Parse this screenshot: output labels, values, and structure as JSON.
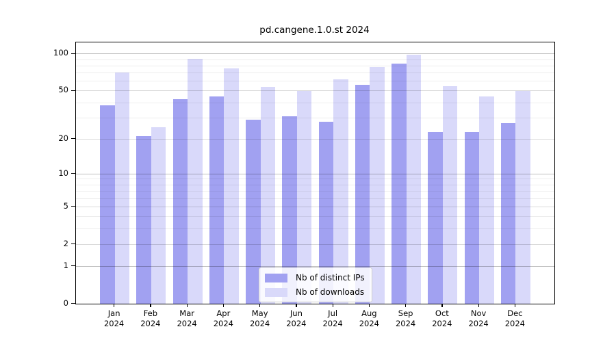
{
  "chart_data": {
    "type": "bar",
    "title": "pd.cangene.1.0.st 2024",
    "scale": "log1p",
    "grid": true,
    "categories": [
      {
        "month": "Jan",
        "year": "2024"
      },
      {
        "month": "Feb",
        "year": "2024"
      },
      {
        "month": "Mar",
        "year": "2024"
      },
      {
        "month": "Apr",
        "year": "2024"
      },
      {
        "month": "May",
        "year": "2024"
      },
      {
        "month": "Jun",
        "year": "2024"
      },
      {
        "month": "Jul",
        "year": "2024"
      },
      {
        "month": "Aug",
        "year": "2024"
      },
      {
        "month": "Sep",
        "year": "2024"
      },
      {
        "month": "Oct",
        "year": "2024"
      },
      {
        "month": "Nov",
        "year": "2024"
      },
      {
        "month": "Dec",
        "year": "2024"
      }
    ],
    "series": [
      {
        "name": "Nb of distinct IPs",
        "color": "#a1a1f1",
        "values": [
          38,
          21,
          43,
          45,
          29,
          31,
          28,
          56,
          83,
          23,
          23,
          27
        ]
      },
      {
        "name": "Nb of downloads",
        "color": "#d9d9fa",
        "values": [
          71,
          25,
          91,
          76,
          54,
          50,
          62,
          78,
          99,
          55,
          45,
          50
        ]
      }
    ],
    "y_axis": {
      "major_ticks": [
        0,
        1,
        2,
        5,
        10,
        20,
        50,
        100
      ],
      "minor_ticks": [
        3,
        4,
        6,
        7,
        8,
        9,
        30,
        40,
        60,
        70,
        80,
        90
      ],
      "range": [
        0,
        124
      ]
    },
    "legend": {
      "position": "bottom-center"
    },
    "colors": {
      "axis": "#000000",
      "grid_major": "#d6d6d6",
      "grid_minor": "#ededed",
      "background": "#ffffff"
    }
  }
}
